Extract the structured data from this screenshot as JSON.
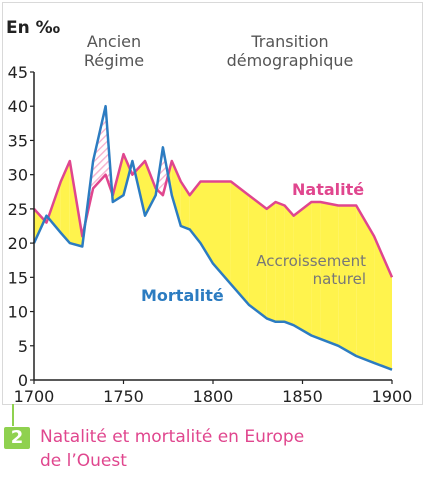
{
  "figure": {
    "number": "2",
    "caption_line1": "Natalité et mortalité en Europe",
    "caption_line2": "de l’Ouest"
  },
  "chart_data": {
    "type": "line",
    "title": "",
    "ylabel": "En ‰",
    "xlabel": "",
    "xlim": [
      1700,
      1900
    ],
    "ylim": [
      0,
      45
    ],
    "x_ticks": [
      1700,
      1750,
      1800,
      1850,
      1900
    ],
    "y_ticks": [
      0,
      5,
      10,
      15,
      20,
      25,
      30,
      35,
      40,
      45
    ],
    "grid": false,
    "periods": [
      {
        "label_line1": "Ancien",
        "label_line2": "Régime"
      },
      {
        "label_line1": "Transition",
        "label_line2": "démographique"
      }
    ],
    "area_label_line1": "Accroissement",
    "area_label_line2": "naturel",
    "colors": {
      "natalite": "#e0468e",
      "mortalite": "#2c7cc1",
      "fill": "#fff34d",
      "hatch": "#f7b6d2"
    },
    "series": [
      {
        "name": "Natalité",
        "x": [
          1700,
          1707,
          1715,
          1720,
          1727,
          1733,
          1740,
          1744,
          1750,
          1755,
          1762,
          1768,
          1772,
          1777,
          1782,
          1787,
          1793,
          1800,
          1810,
          1820,
          1830,
          1835,
          1840,
          1845,
          1855,
          1860,
          1870,
          1880,
          1890,
          1900
        ],
        "values": [
          25,
          23,
          29,
          32,
          21,
          28,
          30,
          27,
          33,
          30,
          32,
          28,
          27,
          32,
          29,
          27,
          29,
          29,
          29,
          27,
          25,
          26,
          25.5,
          24,
          26,
          26,
          25.5,
          25.5,
          21,
          15
        ]
      },
      {
        "name": "Mortalité",
        "x": [
          1700,
          1707,
          1715,
          1720,
          1727,
          1733,
          1740,
          1744,
          1750,
          1755,
          1762,
          1768,
          1772,
          1777,
          1782,
          1787,
          1793,
          1800,
          1810,
          1820,
          1830,
          1835,
          1840,
          1845,
          1855,
          1860,
          1870,
          1880,
          1890,
          1900
        ],
        "values": [
          20,
          24,
          21.5,
          20,
          19.5,
          32,
          40,
          26,
          27,
          32,
          24,
          27,
          34,
          27,
          22.5,
          22,
          20,
          17,
          14,
          11,
          9,
          8.5,
          8.5,
          8,
          6.5,
          6,
          5,
          3.5,
          2.5,
          1.5
        ]
      }
    ]
  }
}
